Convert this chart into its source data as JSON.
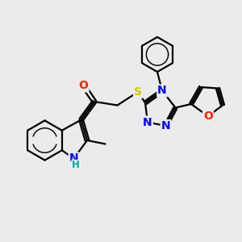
{
  "bg_color": "#ebebeb",
  "atom_colors": {
    "N": "#0000ff",
    "O": "#ff2200",
    "S": "#cccc00",
    "C": "#000000",
    "H": "#00aaaa"
  },
  "bond_color": "#000000",
  "bond_width": 1.6,
  "font_size": 10,
  "fig_size": [
    3.0,
    3.0
  ],
  "dpi": 100,
  "xlim": [
    0,
    10
  ],
  "ylim": [
    0,
    10
  ]
}
